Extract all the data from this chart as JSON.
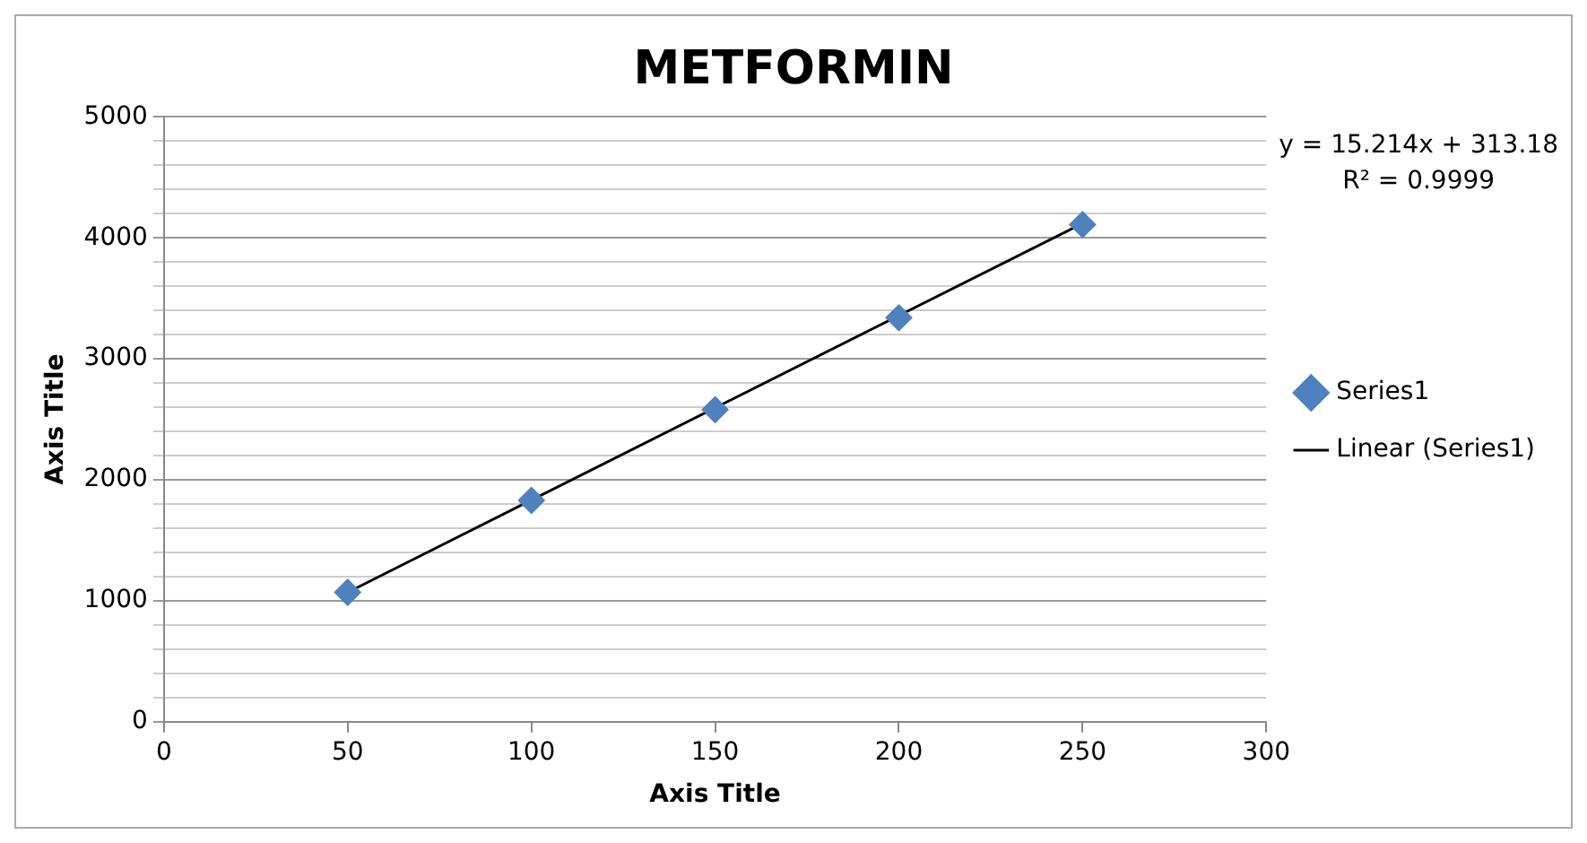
{
  "chart_data": {
    "type": "scatter",
    "title": "METFORMIN",
    "xlabel": "Axis Title",
    "ylabel": "Axis Title",
    "annotations": [
      "y = 15.214x + 313.18",
      "R² = 0.9999"
    ],
    "series": [
      {
        "name": "Series1",
        "color": "#4f81bd",
        "x": [
          50,
          100,
          150,
          200,
          250
        ],
        "values": [
          1070,
          1830,
          2580,
          3340,
          4110
        ],
        "marker": "diamond"
      },
      {
        "name": "Linear (Series1)",
        "type": "line",
        "color": "#000000",
        "x": [
          50,
          250
        ],
        "values": [
          1070,
          4120
        ],
        "marker": "none",
        "line_style": "solid"
      }
    ],
    "xlim": [
      0,
      300
    ],
    "xticks": [
      0,
      50,
      100,
      150,
      200,
      250,
      300
    ],
    "ylim": [
      0,
      5000
    ],
    "yticks": [
      0,
      {
        "value": 200,
        "label": null
      },
      {
        "value": 400,
        "label": null
      },
      {
        "value": 600,
        "label": null
      },
      {
        "value": 800,
        "label": null
      },
      1000,
      {
        "value": 1200,
        "label": null
      },
      {
        "value": 1400,
        "label": null
      },
      {
        "value": 1600,
        "label": null
      },
      {
        "value": 1800,
        "label": null
      },
      2000,
      {
        "value": 2200,
        "label": null
      },
      {
        "value": 2400,
        "label": null
      },
      {
        "value": 2600,
        "label": null
      },
      {
        "value": 2800,
        "label": null
      },
      3000,
      {
        "value": 3200,
        "label": null
      },
      {
        "value": 3400,
        "label": null
      },
      {
        "value": 3600,
        "label": null
      },
      {
        "value": 3800,
        "label": null
      },
      4000,
      {
        "value": 4200,
        "label": null
      },
      {
        "value": 4400,
        "label": null
      },
      {
        "value": 4600,
        "label": null
      },
      {
        "value": 4800,
        "label": null
      },
      5000
    ],
    "grid": "y",
    "legend": "right"
  }
}
